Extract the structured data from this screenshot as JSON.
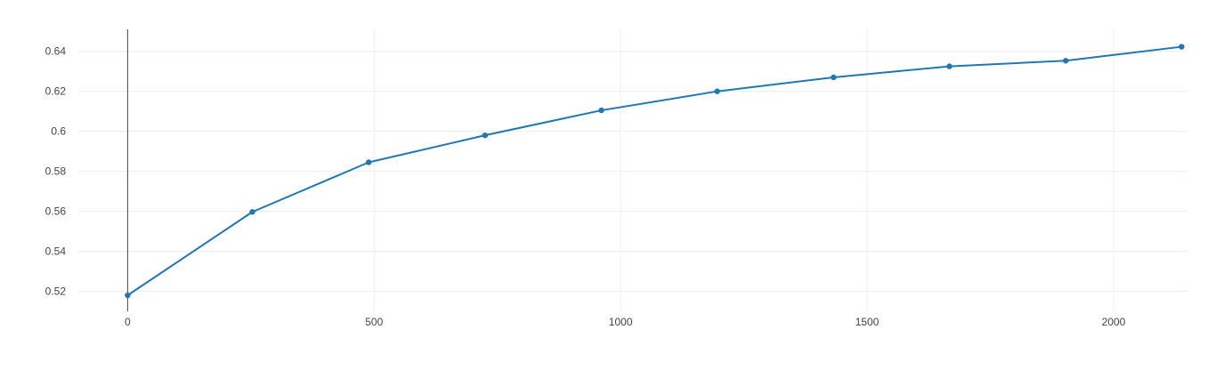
{
  "chart_data": {
    "type": "line",
    "title": "",
    "xlabel": "",
    "ylabel": "",
    "xlim": [
      -100,
      2150
    ],
    "ylim": [
      0.51,
      0.651
    ],
    "x_ticks": [
      0,
      500,
      1000,
      1500,
      2000
    ],
    "x_tick_labels": [
      "0",
      "500",
      "1000",
      "1500",
      "2000"
    ],
    "y_ticks": [
      0.52,
      0.54,
      0.56,
      0.58,
      0.6,
      0.62,
      0.64
    ],
    "y_tick_labels": [
      "0.52",
      "0.54",
      "0.56",
      "0.58",
      "0.6",
      "0.62",
      "0.64"
    ],
    "grid": true,
    "legend": "none",
    "series": [
      {
        "color": "#1f77b4",
        "x": [
          0,
          253,
          489,
          725,
          961,
          1196,
          1432,
          1667,
          1903,
          2138
        ],
        "y": [
          0.518,
          0.5597,
          0.5845,
          0.598,
          0.6105,
          0.62,
          0.627,
          0.6325,
          0.6353,
          0.6423
        ]
      }
    ]
  }
}
